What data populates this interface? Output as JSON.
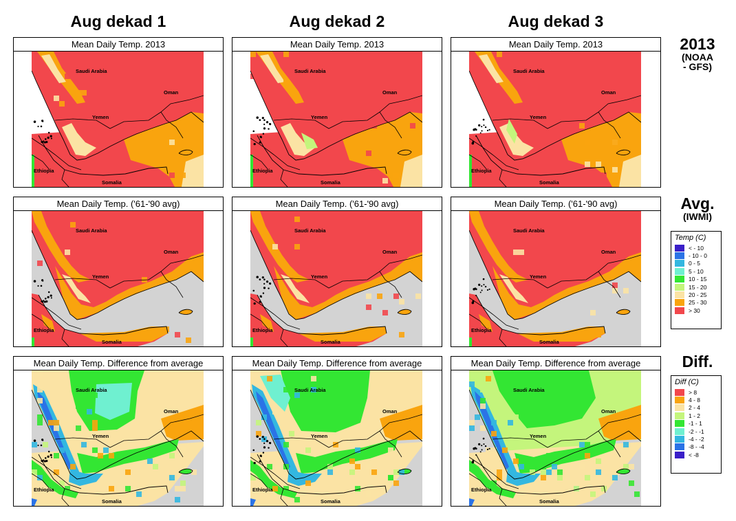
{
  "columns": [
    {
      "title": "Aug dekad 1",
      "variant": 0
    },
    {
      "title": "Aug dekad 2",
      "variant": 1
    },
    {
      "title": "Aug dekad 3",
      "variant": 2
    }
  ],
  "rows": [
    {
      "id": "current",
      "panel_title": "Mean Daily Temp. 2013",
      "label_main": "2013",
      "label_sub_1": "(NOAA",
      "label_sub_2": "- GFS)"
    },
    {
      "id": "average",
      "panel_title": "Mean Daily Temp. ('61-'90 avg)",
      "label_main": "Avg.",
      "label_sub": "(IWMI)"
    },
    {
      "id": "difference",
      "panel_title": "Mean Daily Temp. Difference from average",
      "label_main": "Diff."
    }
  ],
  "map_labels": {
    "saudi": "Saudi Arabia",
    "oman": "Oman",
    "yemen": "Yemen",
    "ethiopia": "Ethiopia",
    "somalia": "Somalia"
  },
  "temp_legend": {
    "title": "Temp (C)",
    "items": [
      {
        "label": "< - 10",
        "color": "#3a1fc8"
      },
      {
        "label": "- 10 -   0",
        "color": "#2b73e6"
      },
      {
        "label": "0 -   5",
        "color": "#33b7e0"
      },
      {
        "label": "5 -  10",
        "color": "#6ff0d0"
      },
      {
        "label": "10 -  15",
        "color": "#33e633"
      },
      {
        "label": "15 -  20",
        "color": "#c4f57c"
      },
      {
        "label": "20 -  25",
        "color": "#fbe3a4"
      },
      {
        "label": "25 -  30",
        "color": "#f9a40e"
      },
      {
        "label": "> 30",
        "color": "#f2474c"
      }
    ]
  },
  "diff_legend": {
    "title": "Diff (C)",
    "items": [
      {
        "label": ">  8",
        "color": "#f2474c"
      },
      {
        "label": "4 -  8",
        "color": "#f9a40e"
      },
      {
        "label": "2 -  4",
        "color": "#fbe3a4"
      },
      {
        "label": "1 -  2",
        "color": "#c4f57c"
      },
      {
        "label": "-1 -  1",
        "color": "#33e633"
      },
      {
        "label": "-2 - -1",
        "color": "#6ff0d0"
      },
      {
        "label": "-4 - -2",
        "color": "#33b7e0"
      },
      {
        "label": "-8 - -4",
        "color": "#2b73e6"
      },
      {
        "label": "< -8",
        "color": "#3a1fc8"
      }
    ]
  },
  "colors": {
    "sea_gray": "#d3d3d3",
    "hot": "#f2474c",
    "warm": "#f9a40e",
    "mild": "#fbe3a4",
    "cool": "#c4f57c",
    "green": "#33e633",
    "aqua": "#6ff0d0",
    "cyan": "#33b7e0",
    "blue": "#2b73e6",
    "indigo": "#3a1fc8"
  }
}
